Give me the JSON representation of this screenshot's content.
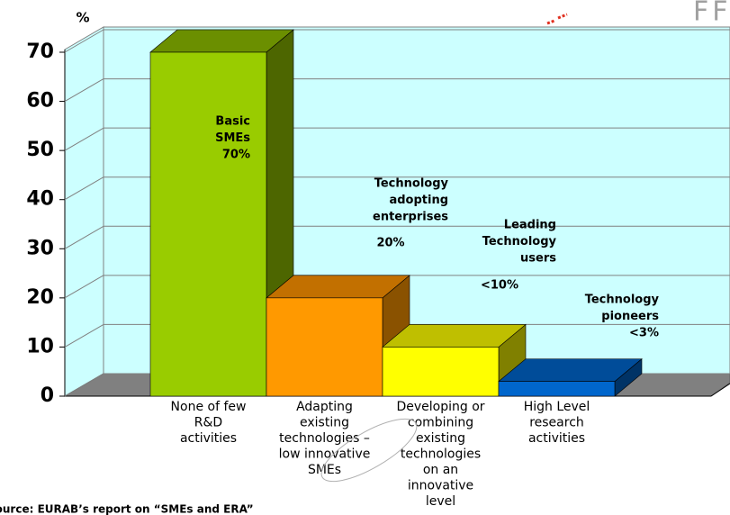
{
  "chart_data": {
    "type": "bar3d",
    "y_label": "%",
    "logo_text": "FFC",
    "source": "Source: EURAB’s report on “SMEs and ERA”",
    "categories": [
      [
        "None of few",
        "R&D",
        "activities"
      ],
      [
        "Adapting",
        "existing",
        "technologies –",
        "low innovative",
        "SMEs"
      ],
      [
        "Developing or",
        "combining",
        "existing",
        "technologies",
        "on an",
        "innovative",
        "level"
      ],
      [
        "High Level",
        "research",
        "activities"
      ]
    ],
    "values": [
      70,
      20,
      10,
      3
    ],
    "colors": [
      {
        "front": "#99cc00",
        "side": "#4d6600",
        "top": "#6b8f00"
      },
      {
        "front": "#ff9900",
        "side": "#8a5200",
        "top": "#c27000"
      },
      {
        "front": "#ffff00",
        "side": "#808000",
        "top": "#bfbf00"
      },
      {
        "front": "#0066cc",
        "side": "#003366",
        "top": "#004c99"
      }
    ],
    "annotations": [
      {
        "lines": [
          "Basic",
          "SMEs"
        ],
        "value": "70%"
      },
      {
        "lines": [
          "Technology",
          "adopting",
          "enterprises"
        ],
        "value": "20%"
      },
      {
        "lines": [
          "Leading",
          "Technology",
          "users"
        ],
        "value": "<10%"
      },
      {
        "lines": [
          "Technology",
          "pioneers"
        ],
        "value": "<3%"
      }
    ],
    "ylim": [
      0,
      70
    ],
    "yticks": [
      0,
      10,
      20,
      30,
      40,
      50,
      60,
      70
    ],
    "grid": true
  }
}
